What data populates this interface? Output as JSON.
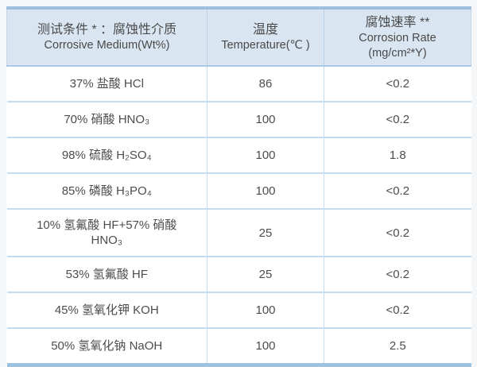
{
  "table": {
    "title_semantic": "corrosion-resistance-test-table",
    "colors": {
      "header_bg": "#d9e5f1",
      "frame_top": "#9dbedc",
      "frame_bottom": "#9cc2e1",
      "grid_line": "#c4dcf0",
      "text": "#4d4d4d"
    },
    "headers": [
      {
        "zh": "测试条件 * ：腐蚀性介质",
        "en": "Corrosive Medium(Wt%)"
      },
      {
        "zh": "温度",
        "en": "Temperature(℃ )"
      },
      {
        "zh": "腐蚀速率 **",
        "en": "Corrosion Rate\n(mg/cm²*Y)"
      }
    ],
    "rows": [
      {
        "medium": "37% 盐酸 HCl",
        "temperature": "86",
        "rate": "<0.2"
      },
      {
        "medium": "70% 硝酸 HNO₃",
        "temperature": "100",
        "rate": "<0.2"
      },
      {
        "medium": "98% 硫酸 H₂SO₄",
        "temperature": "100",
        "rate": "1.8"
      },
      {
        "medium": "85% 磷酸 H₃PO₄",
        "temperature": "100",
        "rate": "<0.2"
      },
      {
        "medium": "10% 氢氟酸 HF+57% 硝酸\nHNO₃",
        "temperature": "25",
        "rate": "<0.2"
      },
      {
        "medium": "53% 氢氟酸 HF",
        "temperature": "25",
        "rate": "<0.2"
      },
      {
        "medium": "45% 氢氧化钾 KOH",
        "temperature": "100",
        "rate": "<0.2"
      },
      {
        "medium": "50% 氢氧化钠 NaOH",
        "temperature": "100",
        "rate": "2.5"
      }
    ]
  }
}
